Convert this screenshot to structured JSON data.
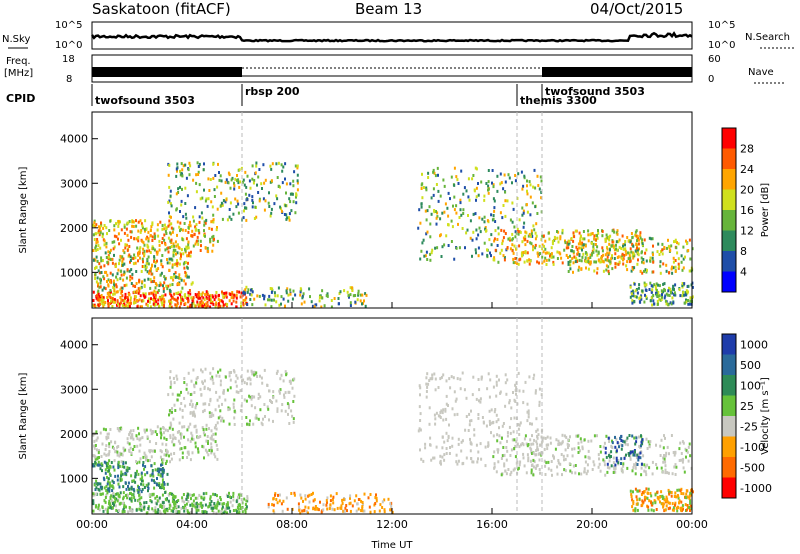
{
  "header": {
    "station": "Saskatoon (fitACF)",
    "beam": "Beam 13",
    "date": "04/Oct/2015"
  },
  "top_panels": {
    "nsky_label": "N.Sky",
    "nsky_ticks": [
      "10^5",
      "10^0"
    ],
    "nsearch_label": "N.Search",
    "nsearch_ticks": [
      "10^5",
      "10^0"
    ],
    "freq_label": "Freq.",
    "freq_unit": "[MHz]",
    "freq_ticks": [
      "18",
      "8"
    ],
    "nave_label": "Nave",
    "nave_ticks": [
      "60",
      "0"
    ],
    "cpid_label": "CPID"
  },
  "cpid_segments": [
    {
      "name": "twofsound 3503",
      "start_hour": 0,
      "end_hour": 6
    },
    {
      "name": "rbsp 200",
      "start_hour": 6,
      "end_hour": 17
    },
    {
      "name": "themis 3300",
      "start_hour": 17,
      "end_hour": 18
    },
    {
      "name": "twofsound 3503",
      "start_hour": 18,
      "end_hour": 24
    }
  ],
  "chart_data": [
    {
      "type": "heatmap",
      "title": "",
      "xlabel": "",
      "ylabel": "Slant Range [km]",
      "xlim": [
        0,
        24
      ],
      "ylim": [
        200,
        4600
      ],
      "yticks": [
        "1000",
        "2000",
        "3000",
        "4000"
      ],
      "colorbar": {
        "label": "Power [dB]",
        "ticks": [
          "4",
          "8",
          "12",
          "16",
          "20",
          "24",
          "28"
        ],
        "colors": [
          "#0000ff",
          "#1f4ea8",
          "#2d8a5c",
          "#66b43a",
          "#cfe01d",
          "#ffa500",
          "#ff5a00",
          "#ff0000"
        ]
      },
      "echo_bands": [
        {
          "region": "near range",
          "hours": [
            0,
            6.2
          ],
          "range_km": [
            300,
            1500
          ],
          "power_db": "high"
        },
        {
          "region": "mid range",
          "hours": [
            0,
            8.2
          ],
          "range_km": [
            1500,
            3500
          ],
          "power_db": "moderate"
        },
        {
          "region": "far range",
          "hours": [
            13,
            24
          ],
          "range_km": [
            1000,
            3400
          ],
          "power_db": "moderate"
        },
        {
          "region": "near range late",
          "hours": [
            21.5,
            24
          ],
          "range_km": [
            300,
            800
          ],
          "power_db": "moderate"
        }
      ]
    },
    {
      "type": "heatmap",
      "title": "",
      "xlabel": "Time UT",
      "ylabel": "Slant Range [km]",
      "xlim": [
        0,
        24
      ],
      "ylim": [
        200,
        4600
      ],
      "xticks": [
        "00:00",
        "04:00",
        "08:00",
        "12:00",
        "16:00",
        "20:00",
        "00:00"
      ],
      "yticks": [
        "1000",
        "2000",
        "3000",
        "4000"
      ],
      "colorbar": {
        "label": "Velocity [m s⁻¹]",
        "ticks": [
          "1000",
          "500",
          "100",
          "25",
          "-25",
          "-100",
          "-500",
          "-1000"
        ],
        "colors": [
          "#1e3caa",
          "#2a6a9a",
          "#2e8b57",
          "#66c23a",
          "#c8c8c0",
          "#ffa000",
          "#ff6a00",
          "#ff0000"
        ]
      },
      "echo_bands": [
        {
          "region": "near range",
          "hours": [
            0,
            6.2
          ],
          "range_km": [
            300,
            1500
          ],
          "velocity_ms": "-100 to 100"
        },
        {
          "region": "mid range",
          "hours": [
            0,
            8.2
          ],
          "range_km": [
            1500,
            3500
          ],
          "velocity_ms": "-25 to 25"
        },
        {
          "region": "far range",
          "hours": [
            13,
            24
          ],
          "range_km": [
            1000,
            3400
          ],
          "velocity_ms": "-25 to 25"
        },
        {
          "region": "late near range",
          "hours": [
            21.5,
            24
          ],
          "range_km": [
            300,
            800
          ],
          "velocity_ms": "-500 to 100"
        }
      ]
    }
  ]
}
